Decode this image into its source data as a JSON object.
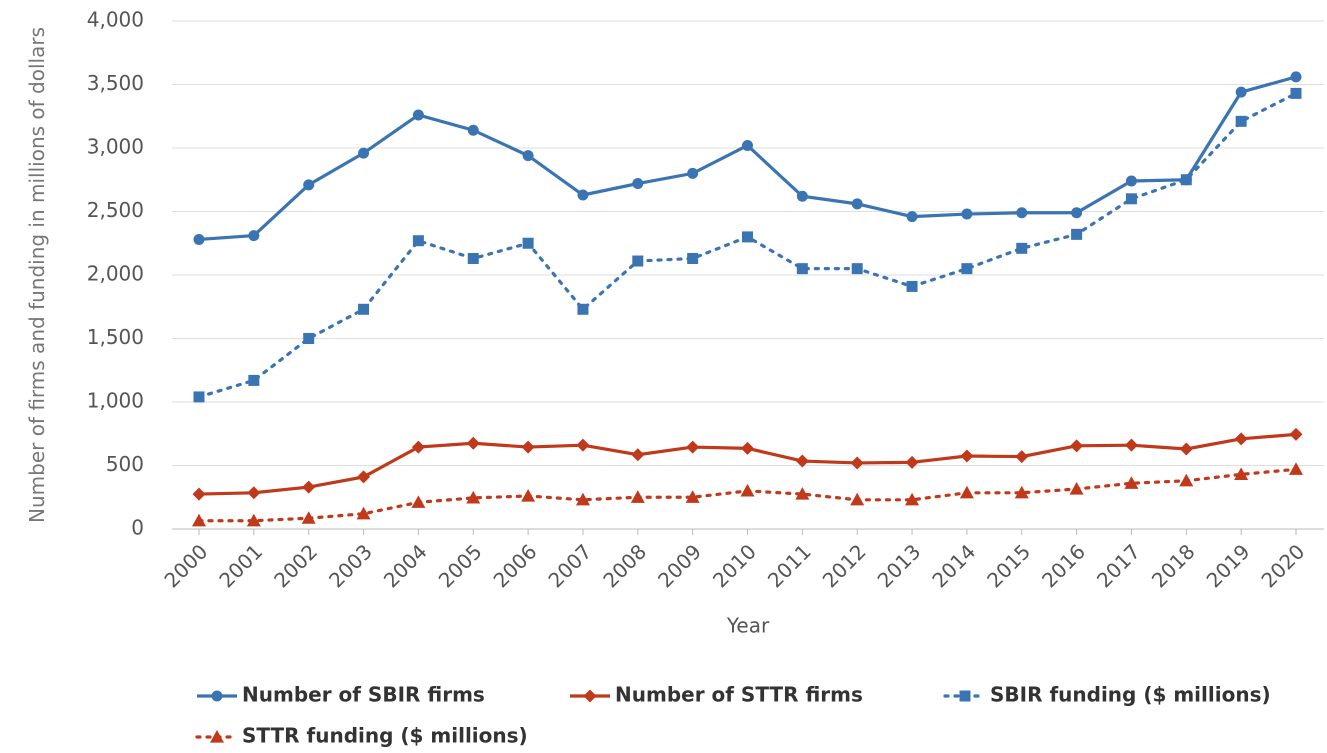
{
  "chart_data": {
    "type": "line",
    "x_label": "Year",
    "y_label": "Number of firms and funding in millions of dollars",
    "categories": [
      "2000",
      "2001",
      "2002",
      "2003",
      "2004",
      "2005",
      "2006",
      "2007",
      "2008",
      "2009",
      "2010",
      "2011",
      "2012",
      "2013",
      "2014",
      "2015",
      "2016",
      "2017",
      "2018",
      "2019",
      "2020"
    ],
    "ylim": [
      0,
      4000
    ],
    "yticks": [
      0,
      500,
      {
        "value": 1000,
        "label": "1,000"
      },
      {
        "value": 1500,
        "label": "1,500"
      },
      {
        "value": 2000,
        "label": "2,000"
      },
      {
        "value": 2500,
        "label": "2,500"
      },
      {
        "value": 3000,
        "label": "3,000"
      },
      {
        "value": 3500,
        "label": "3,500"
      },
      {
        "value": 4000,
        "label": "4,000"
      }
    ],
    "grid": true,
    "legend": "bottom",
    "series": [
      {
        "name": "Number of SBIR firms",
        "color": "#3b74b2",
        "marker": "circle",
        "dash": false,
        "values": [
          2280,
          2310,
          2710,
          2960,
          3260,
          3140,
          2940,
          2630,
          2720,
          2800,
          3020,
          2620,
          2560,
          2460,
          2480,
          2490,
          2490,
          2740,
          2750,
          3440,
          3560
        ]
      },
      {
        "name": "Number of STTR firms",
        "color": "#c0391b",
        "marker": "diamond",
        "dash": false,
        "values": [
          275,
          285,
          330,
          410,
          645,
          675,
          645,
          660,
          585,
          645,
          635,
          535,
          520,
          525,
          575,
          570,
          655,
          660,
          630,
          710,
          745
        ]
      },
      {
        "name": "SBIR funding ($ millions)",
        "color": "#3b74b2",
        "marker": "square",
        "dash": true,
        "values": [
          1040,
          1170,
          1500,
          1730,
          2270,
          2130,
          2250,
          1730,
          2110,
          2130,
          2300,
          2050,
          2050,
          1910,
          2050,
          2210,
          2320,
          2600,
          2750,
          3210,
          3430
        ]
      },
      {
        "name": "STTR funding ($ millions)",
        "color": "#c0391b",
        "marker": "triangle",
        "dash": true,
        "values": [
          65,
          65,
          85,
          120,
          210,
          245,
          260,
          230,
          250,
          250,
          300,
          275,
          230,
          230,
          285,
          285,
          315,
          360,
          380,
          430,
          470
        ]
      }
    ]
  }
}
